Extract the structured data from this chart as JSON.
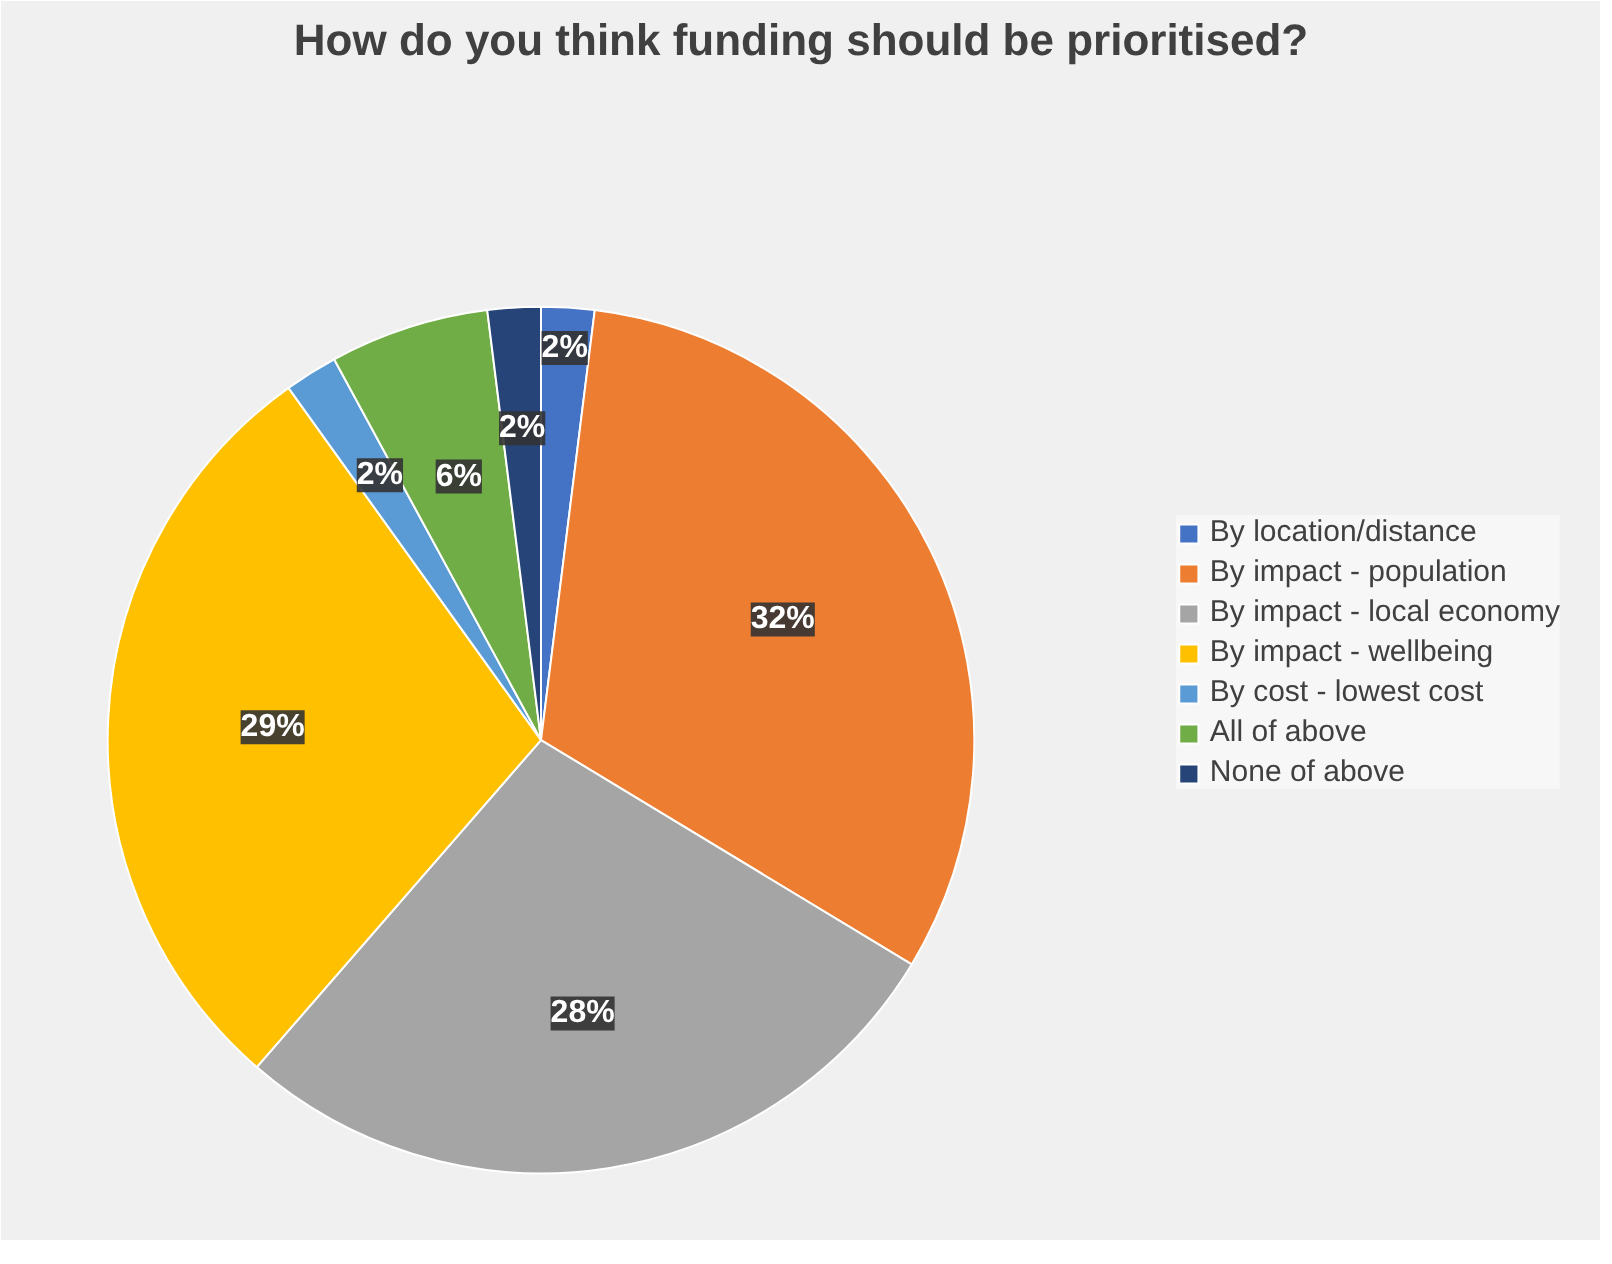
{
  "chart_data": {
    "type": "pie",
    "title": "How do you think funding should be prioritised?",
    "categories": [
      "By location/distance",
      "By impact - population",
      "By impact - local economy",
      "By impact - wellbeing",
      "By cost - lowest cost",
      "All of above",
      "None of above"
    ],
    "values": [
      2,
      32,
      28,
      29,
      2,
      6,
      2
    ],
    "value_labels": [
      "2%",
      "32%",
      "28%",
      "29%",
      "2%",
      "6%",
      "2%"
    ],
    "colors": [
      "#4472c4",
      "#ed7d31",
      "#a5a5a5",
      "#ffc000",
      "#5b9bd5",
      "#70ad47",
      "#264478"
    ],
    "legend": "right"
  }
}
